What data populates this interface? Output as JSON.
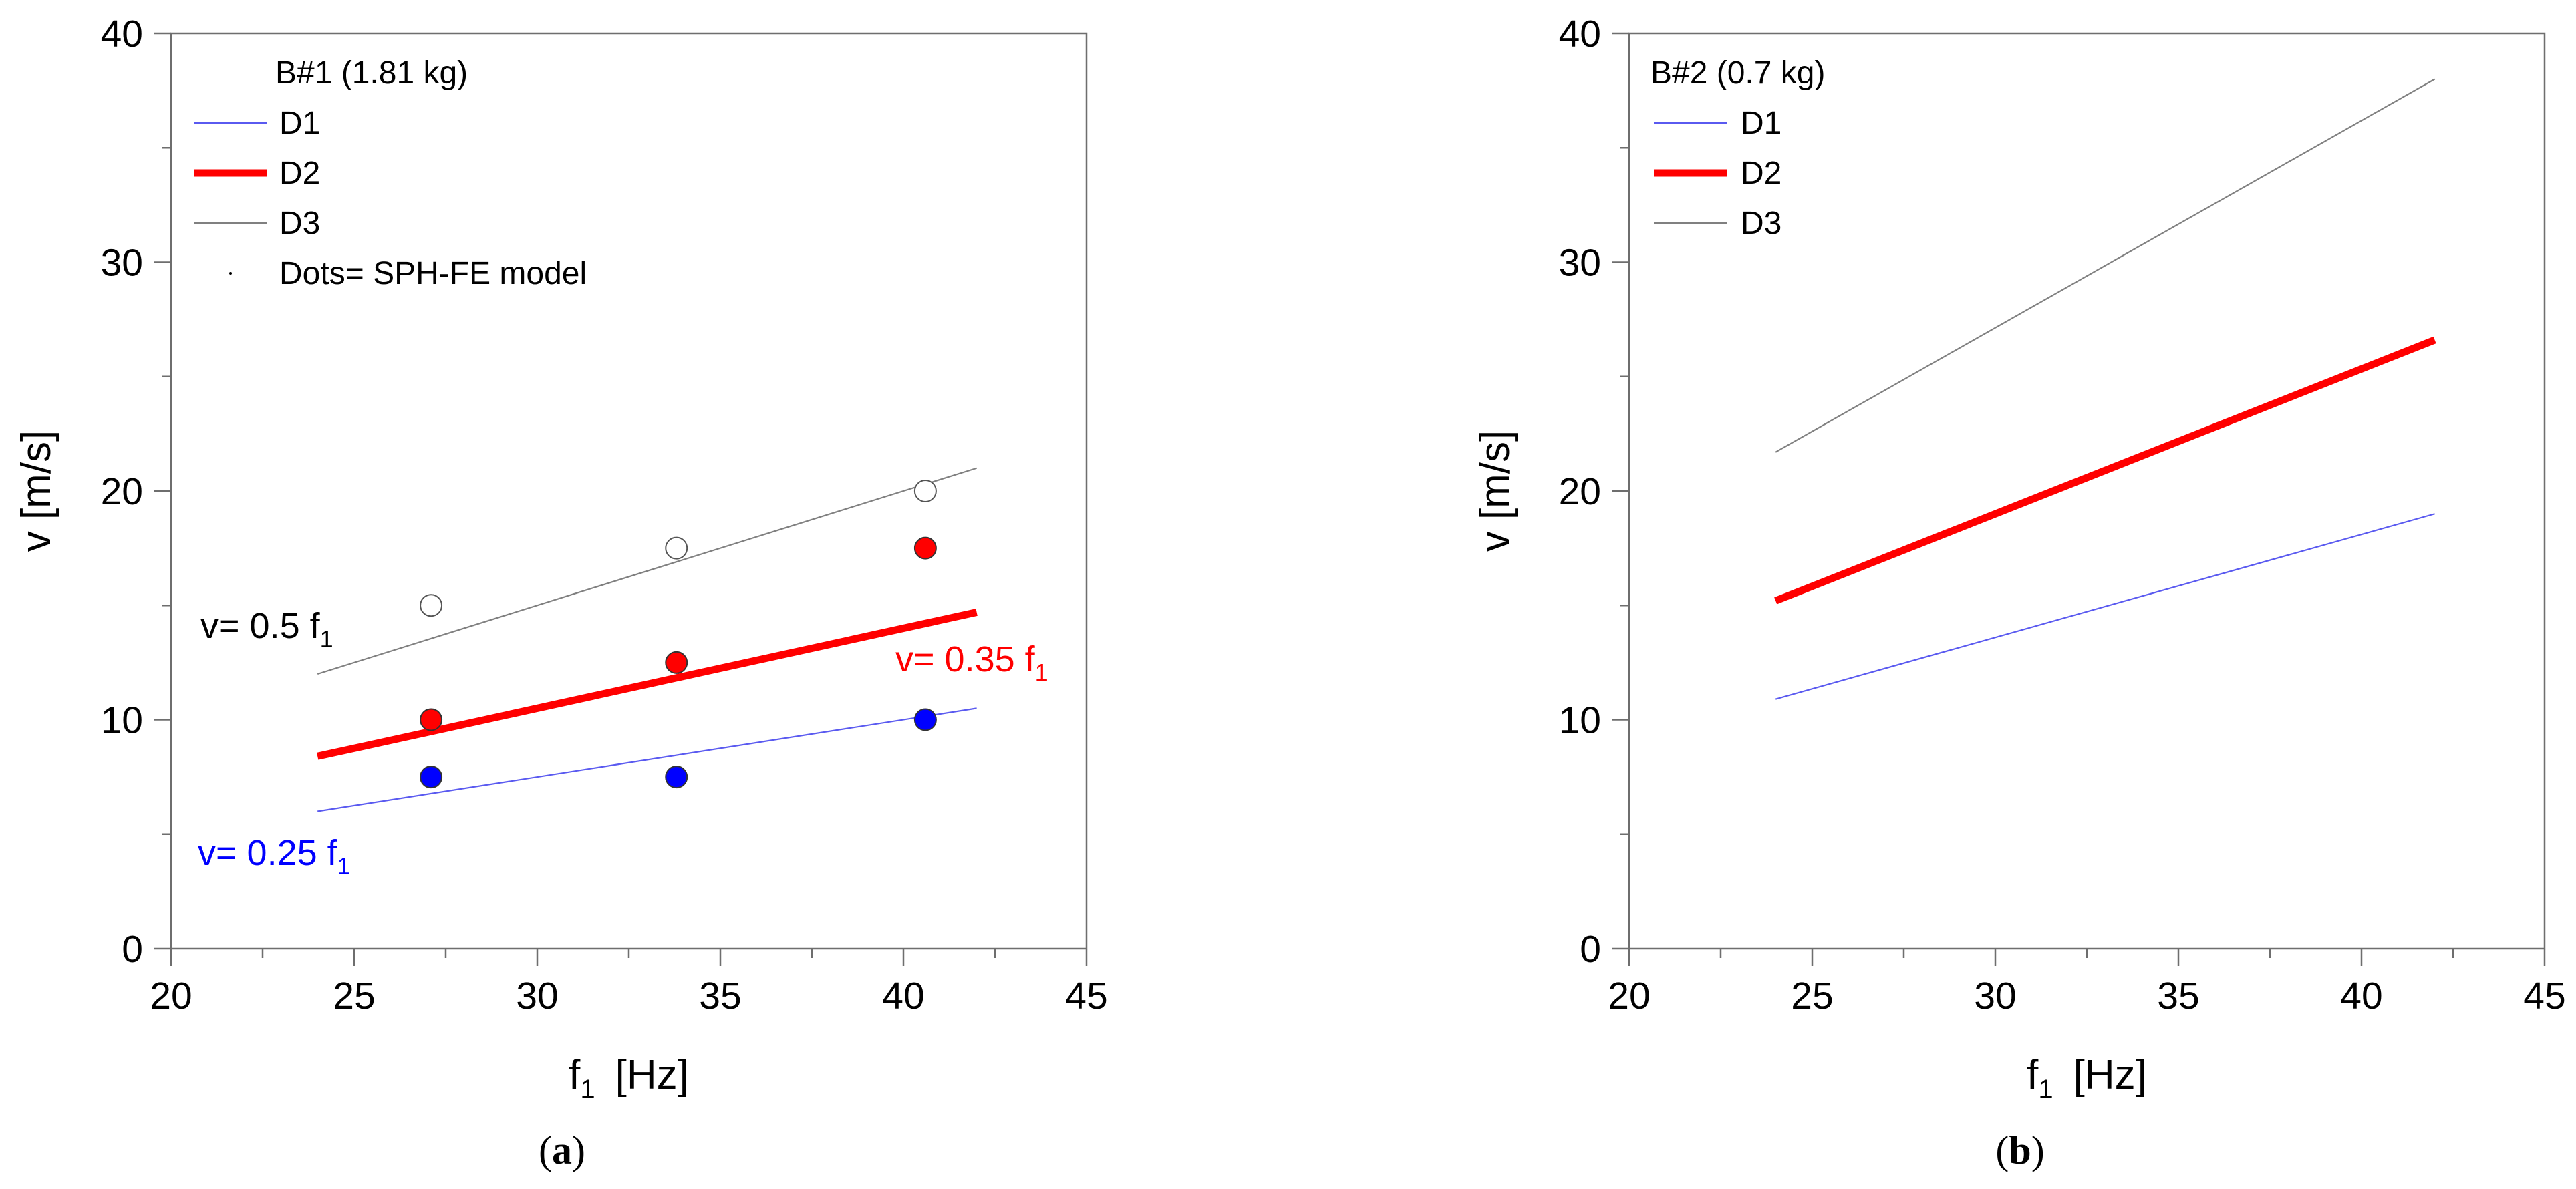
{
  "chart_data": [
    {
      "type": "line",
      "panel": "(a)",
      "panel_letter": "a",
      "legend_title": "B#1 (1.81 kg)",
      "xlabel": "f",
      "xlabel_sub": "1",
      "xlabel_unit": "[Hz]",
      "ylabel": "v  [m/s]",
      "xlim": [
        20,
        45
      ],
      "ylim": [
        0,
        40
      ],
      "x_ticks": [
        20,
        25,
        30,
        35,
        40,
        45
      ],
      "y_ticks": [
        0,
        10,
        20,
        30,
        40
      ],
      "series": [
        {
          "name": "D1",
          "color": "#5a5af0",
          "x": [
            24,
            42
          ],
          "y": [
            6.0,
            10.5
          ]
        },
        {
          "name": "D2",
          "color": "#ff0000",
          "x": [
            24,
            42
          ],
          "y": [
            8.4,
            14.7
          ]
        },
        {
          "name": "D3",
          "color": "#808080",
          "x": [
            24,
            42
          ],
          "y": [
            12.0,
            21.0
          ]
        }
      ],
      "points": [
        {
          "group": "D1",
          "fill": "#0000ff",
          "x": [
            27.1,
            33.8,
            40.6
          ],
          "y": [
            7.5,
            7.5,
            10.0
          ]
        },
        {
          "group": "D2",
          "fill": "#ff0000",
          "x": [
            27.1,
            33.8,
            40.6
          ],
          "y": [
            10.0,
            12.5,
            17.5
          ]
        },
        {
          "group": "D3",
          "fill": "#ffffff",
          "x": [
            27.1,
            33.8,
            40.6
          ],
          "y": [
            15.0,
            17.5,
            20.0
          ]
        }
      ],
      "dots_label": "Dots= SPH-FE model",
      "annotations": [
        {
          "text": "v= 0.5 f",
          "sub": "1",
          "color": "#000000"
        },
        {
          "text": "v= 0.35 f",
          "sub": "1",
          "color": "#ff0000"
        },
        {
          "text": "v= 0.25 f",
          "sub": "1",
          "color": "#0000ff"
        }
      ]
    },
    {
      "type": "line",
      "panel": "(b)",
      "panel_letter": "b",
      "legend_title": "B#2 (0.7 kg)",
      "xlabel": "f",
      "xlabel_sub": "1",
      "xlabel_unit": "[Hz]",
      "ylabel": "v  [m/s]",
      "xlim": [
        20,
        45
      ],
      "ylim": [
        0,
        40
      ],
      "x_ticks": [
        20,
        25,
        30,
        35,
        40,
        45
      ],
      "y_ticks": [
        0,
        10,
        20,
        30,
        40
      ],
      "series": [
        {
          "name": "D1",
          "color": "#5a5af0",
          "x": [
            24,
            42
          ],
          "y": [
            10.9,
            19.0
          ]
        },
        {
          "name": "D2",
          "color": "#ff0000",
          "x": [
            24,
            42
          ],
          "y": [
            15.2,
            26.6
          ]
        },
        {
          "name": "D3",
          "color": "#808080",
          "x": [
            24,
            42
          ],
          "y": [
            21.7,
            38.0
          ]
        }
      ],
      "points": [],
      "annotations": []
    }
  ]
}
